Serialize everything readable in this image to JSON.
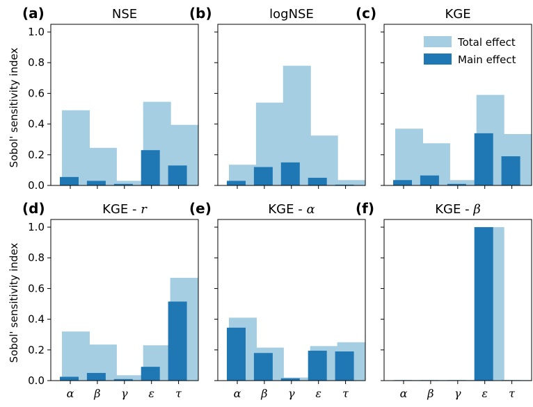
{
  "figure": {
    "ylabel": "Sobol' sensitivity index",
    "legend": [
      {
        "name": "Total effect",
        "color": "#a6cee3"
      },
      {
        "name": "Main effect",
        "color": "#1f78b4"
      }
    ],
    "legend_location": "top-right of panel (c)"
  },
  "chart_data": [
    {
      "type": "bar",
      "letter": "(a)",
      "title": "NSE",
      "categories": [
        "α",
        "β",
        "γ",
        "ε",
        "τ"
      ],
      "ylim": [
        0,
        1.05
      ],
      "yticks": [
        "0.0",
        "0.2",
        "0.4",
        "0.6",
        "0.8",
        "1.0"
      ],
      "series": [
        {
          "name": "Total effect",
          "values": [
            0.49,
            0.245,
            0.03,
            0.545,
            0.395
          ]
        },
        {
          "name": "Main effect",
          "values": [
            0.055,
            0.03,
            0.01,
            0.23,
            0.13
          ]
        }
      ]
    },
    {
      "type": "bar",
      "letter": "(b)",
      "title": "logNSE",
      "categories": [
        "α",
        "β",
        "γ",
        "ε",
        "τ"
      ],
      "ylim": [
        0,
        1.05
      ],
      "series": [
        {
          "name": "Total effect",
          "values": [
            0.135,
            0.54,
            0.78,
            0.325,
            0.035
          ]
        },
        {
          "name": "Main effect",
          "values": [
            0.03,
            0.12,
            0.15,
            0.05,
            0.005
          ]
        }
      ]
    },
    {
      "type": "bar",
      "letter": "(c)",
      "title": "KGE",
      "categories": [
        "α",
        "β",
        "γ",
        "ε",
        "τ"
      ],
      "ylim": [
        0,
        1.05
      ],
      "series": [
        {
          "name": "Total effect",
          "values": [
            0.37,
            0.275,
            0.035,
            0.59,
            0.335
          ]
        },
        {
          "name": "Main effect",
          "values": [
            0.035,
            0.065,
            0.01,
            0.34,
            0.19
          ]
        }
      ]
    },
    {
      "type": "bar",
      "letter": "(d)",
      "title": "KGE - ",
      "title_symbol": "r",
      "categories": [
        "α",
        "β",
        "γ",
        "ε",
        "τ"
      ],
      "ylim": [
        0,
        1.05
      ],
      "yticks": [
        "0.0",
        "0.2",
        "0.4",
        "0.6",
        "0.8",
        "1.0"
      ],
      "series": [
        {
          "name": "Total effect",
          "values": [
            0.32,
            0.235,
            0.035,
            0.23,
            0.67
          ]
        },
        {
          "name": "Main effect",
          "values": [
            0.025,
            0.05,
            0.01,
            0.09,
            0.515
          ]
        }
      ]
    },
    {
      "type": "bar",
      "letter": "(e)",
      "title": "KGE - ",
      "title_symbol": "α",
      "categories": [
        "α",
        "β",
        "γ",
        "ε",
        "τ"
      ],
      "ylim": [
        0,
        1.05
      ],
      "series": [
        {
          "name": "Total effect",
          "values": [
            0.41,
            0.215,
            0.02,
            0.225,
            0.25
          ]
        },
        {
          "name": "Main effect",
          "values": [
            0.345,
            0.18,
            0.015,
            0.195,
            0.19
          ]
        }
      ]
    },
    {
      "type": "bar",
      "letter": "(f)",
      "title": "KGE - ",
      "title_symbol": "β",
      "categories": [
        "α",
        "β",
        "γ",
        "ε",
        "τ"
      ],
      "ylim": [
        0,
        1.05
      ],
      "series": [
        {
          "name": "Total effect",
          "values": [
            0.004,
            0.004,
            0.004,
            1.0,
            0.004
          ]
        },
        {
          "name": "Main effect",
          "values": [
            0.003,
            0.003,
            0.003,
            1.0,
            0.003
          ]
        }
      ]
    }
  ]
}
